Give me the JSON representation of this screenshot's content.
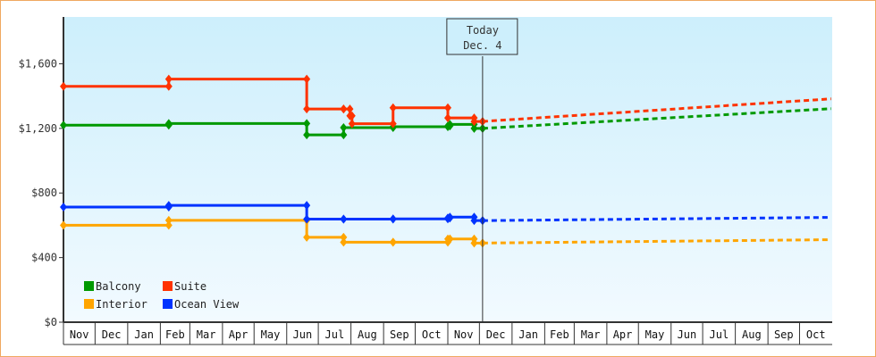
{
  "chart_data": {
    "type": "line",
    "title": "",
    "xlabel": "",
    "ylabel": "",
    "ylim": [
      0,
      1890
    ],
    "y_ticks": [
      "$0",
      "$400",
      "$800",
      "$1,200",
      "$1,600"
    ],
    "y_tick_values": [
      0,
      400,
      800,
      1200,
      1600
    ],
    "x_month_labels": [
      "Nov",
      "Dec",
      "Jan",
      "Feb",
      "Mar",
      "Apr",
      "May",
      "Jun",
      "Jul",
      "Aug",
      "Sep",
      "Oct",
      "Nov",
      "Dec",
      "Jan",
      "Feb",
      "Mar",
      "Apr",
      "May",
      "Jun",
      "Jul",
      "Aug",
      "Sep",
      "Oct"
    ],
    "grid": false,
    "legend_position": "bottom-left",
    "today_marker": {
      "line1": "Today",
      "line2": "Dec. 4",
      "date": "Dec 4"
    },
    "series": [
      {
        "name": "Balcony",
        "color": "#009900",
        "step": true,
        "points": [
          [
            "Nov 1",
            1220
          ],
          [
            "Feb 9",
            1230
          ],
          [
            "Jun 20",
            1160
          ],
          [
            "Jul 25",
            1205
          ],
          [
            "Sep 10",
            1210
          ],
          [
            "Nov 1",
            1215
          ],
          [
            "Nov 3",
            1225
          ],
          [
            "Nov 26",
            1200
          ],
          [
            "Dec 4",
            1200
          ]
        ],
        "forecast": [
          [
            "Dec 4",
            1200
          ],
          [
            "Oct 31",
            1322
          ]
        ]
      },
      {
        "name": "Suite",
        "color": "#ff3300",
        "step": true,
        "points": [
          [
            "Nov 1",
            1460
          ],
          [
            "Feb 9",
            1505
          ],
          [
            "Jun 20",
            1320
          ],
          [
            "Jul 25",
            1320
          ],
          [
            "Jul 31",
            1278
          ],
          [
            "Aug 2",
            1229
          ],
          [
            "Sep 10",
            1328
          ],
          [
            "Nov 1",
            1265
          ],
          [
            "Nov 26",
            1243
          ],
          [
            "Dec 4",
            1243
          ]
        ],
        "forecast": [
          [
            "Dec 4",
            1243
          ],
          [
            "Oct 31",
            1383
          ]
        ]
      },
      {
        "name": "Interior",
        "color": "#ffa500",
        "step": true,
        "points": [
          [
            "Nov 1",
            600
          ],
          [
            "Feb 9",
            631
          ],
          [
            "Jun 20",
            526
          ],
          [
            "Jul 25",
            495
          ],
          [
            "Sep 10",
            495
          ],
          [
            "Nov 1",
            515
          ],
          [
            "Nov 3",
            515
          ],
          [
            "Nov 26",
            490
          ],
          [
            "Dec 4",
            490
          ]
        ],
        "forecast": [
          [
            "Dec 4",
            490
          ],
          [
            "Oct 31",
            511
          ]
        ]
      },
      {
        "name": "Ocean View",
        "color": "#0033ff",
        "step": true,
        "points": [
          [
            "Nov 1",
            713
          ],
          [
            "Feb 9",
            723
          ],
          [
            "Jun 20",
            638
          ],
          [
            "Jul 25",
            638
          ],
          [
            "Sep 10",
            640
          ],
          [
            "Nov 1",
            645
          ],
          [
            "Nov 3",
            651
          ],
          [
            "Nov 26",
            629
          ],
          [
            "Dec 4",
            629
          ]
        ],
        "forecast": [
          [
            "Dec 4",
            629
          ],
          [
            "Oct 31",
            649
          ]
        ]
      }
    ]
  }
}
